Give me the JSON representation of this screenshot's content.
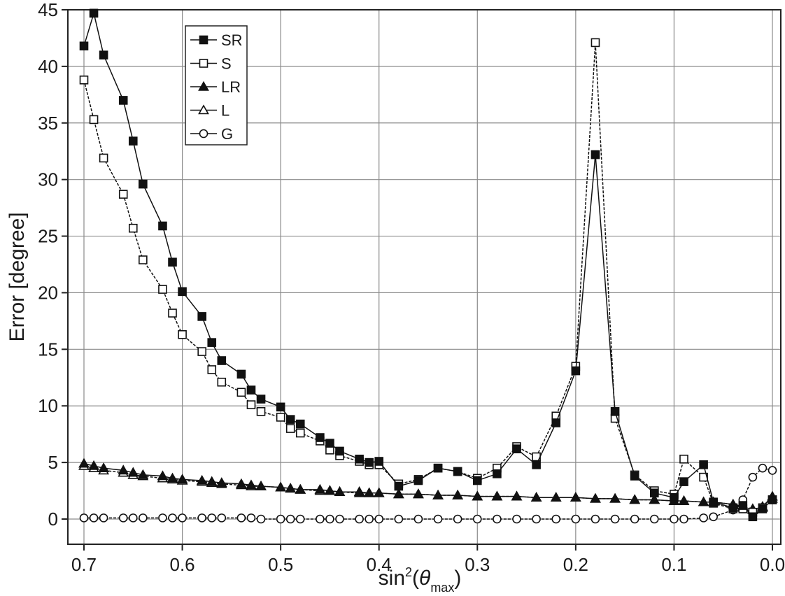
{
  "chart_data": {
    "type": "line",
    "ylabel": "Error [degree]",
    "xlabel": "sin²(θmax)",
    "xlabel_parts": {
      "main": "sin",
      "sup": "2",
      "open": "(",
      "theta": "θ",
      "sub": "max",
      "close": ")"
    },
    "xlim": [
      0.7,
      0.0
    ],
    "ylim": [
      0,
      45
    ],
    "x_reversed": true,
    "grid": true,
    "legend_position": "top-left",
    "xticks": [
      0.7,
      0.6,
      0.5,
      0.4,
      0.3,
      0.2,
      0.1,
      0.0
    ],
    "xtick_labels": [
      "0.7",
      "0.6",
      "0.5",
      "0.4",
      "0.3",
      "0.2",
      "0.1",
      "0.0"
    ],
    "yticks": [
      0,
      5,
      10,
      15,
      20,
      25,
      30,
      35,
      40,
      45
    ],
    "ytick_labels": [
      "0",
      "5",
      "10",
      "15",
      "20",
      "25",
      "30",
      "35",
      "40",
      "45"
    ],
    "series": [
      {
        "name": "SR",
        "marker": "square-filled",
        "x": [
          0.7,
          0.69,
          0.68,
          0.66,
          0.65,
          0.64,
          0.62,
          0.61,
          0.6,
          0.58,
          0.57,
          0.56,
          0.54,
          0.53,
          0.52,
          0.5,
          0.49,
          0.48,
          0.46,
          0.45,
          0.44,
          0.42,
          0.41,
          0.4,
          0.38,
          0.36,
          0.34,
          0.32,
          0.3,
          0.28,
          0.26,
          0.24,
          0.22,
          0.2,
          0.18,
          0.16,
          0.14,
          0.12,
          0.1,
          0.09,
          0.07,
          0.06,
          0.04,
          0.03,
          0.02,
          0.01,
          0.0
        ],
        "values": [
          41.8,
          44.7,
          41.0,
          37.0,
          33.4,
          29.6,
          25.9,
          22.7,
          20.1,
          17.9,
          15.6,
          14.0,
          12.8,
          11.4,
          10.6,
          9.9,
          8.8,
          8.4,
          7.2,
          6.7,
          6.0,
          5.3,
          5.0,
          5.1,
          2.9,
          3.4,
          4.5,
          4.2,
          3.4,
          4.0,
          6.2,
          4.8,
          8.5,
          13.1,
          32.2,
          9.5,
          3.8,
          2.3,
          1.9,
          3.3,
          4.8,
          1.5,
          1.0,
          1.2,
          0.2,
          0.9,
          1.7
        ]
      },
      {
        "name": "S",
        "marker": "square-open",
        "x": [
          0.7,
          0.69,
          0.68,
          0.66,
          0.65,
          0.64,
          0.62,
          0.61,
          0.6,
          0.58,
          0.57,
          0.56,
          0.54,
          0.53,
          0.52,
          0.5,
          0.49,
          0.48,
          0.46,
          0.45,
          0.44,
          0.42,
          0.41,
          0.4,
          0.38,
          0.36,
          0.34,
          0.32,
          0.3,
          0.28,
          0.26,
          0.24,
          0.22,
          0.2,
          0.18,
          0.16,
          0.14,
          0.12,
          0.1,
          0.09,
          0.07,
          0.06,
          0.04,
          0.03,
          0.02,
          0.01,
          0.0
        ],
        "values": [
          38.8,
          35.3,
          31.9,
          28.7,
          25.7,
          22.9,
          20.3,
          18.2,
          16.3,
          14.8,
          13.2,
          12.1,
          11.2,
          10.1,
          9.5,
          9.0,
          8.0,
          7.6,
          6.9,
          6.1,
          5.6,
          5.1,
          4.8,
          4.8,
          3.1,
          3.5,
          4.5,
          4.2,
          3.6,
          4.5,
          6.4,
          5.5,
          9.1,
          13.5,
          42.1,
          8.9,
          3.9,
          2.5,
          2.2,
          5.3,
          3.7,
          1.4,
          0.9,
          0.9,
          0.6,
          1.0,
          1.7
        ]
      },
      {
        "name": "LR",
        "marker": "triangle-filled",
        "x": [
          0.7,
          0.69,
          0.68,
          0.66,
          0.65,
          0.64,
          0.62,
          0.61,
          0.6,
          0.58,
          0.57,
          0.56,
          0.54,
          0.53,
          0.52,
          0.5,
          0.49,
          0.48,
          0.46,
          0.45,
          0.44,
          0.42,
          0.41,
          0.4,
          0.38,
          0.36,
          0.34,
          0.32,
          0.3,
          0.28,
          0.26,
          0.24,
          0.22,
          0.2,
          0.18,
          0.16,
          0.14,
          0.12,
          0.1,
          0.09,
          0.07,
          0.06,
          0.04,
          0.03,
          0.02,
          0.01,
          0.0
        ],
        "values": [
          4.9,
          4.7,
          4.5,
          4.3,
          4.1,
          3.9,
          3.8,
          3.6,
          3.5,
          3.4,
          3.3,
          3.2,
          3.1,
          3.0,
          2.9,
          2.8,
          2.7,
          2.6,
          2.6,
          2.5,
          2.4,
          2.4,
          2.3,
          2.3,
          2.2,
          2.2,
          2.1,
          2.1,
          2.0,
          2.0,
          2.0,
          1.9,
          1.9,
          1.9,
          1.8,
          1.8,
          1.7,
          1.7,
          1.6,
          1.6,
          1.5,
          1.5,
          1.3,
          1.0,
          0.8,
          1.1,
          2.0
        ]
      },
      {
        "name": "L",
        "marker": "triangle-open",
        "x": [
          0.7,
          0.69,
          0.68,
          0.66,
          0.65,
          0.64,
          0.62,
          0.61,
          0.6,
          0.58,
          0.57,
          0.56,
          0.54,
          0.53,
          0.52,
          0.5,
          0.49,
          0.48,
          0.46,
          0.45,
          0.44,
          0.42,
          0.41,
          0.4,
          0.38,
          0.36,
          0.34,
          0.32,
          0.3,
          0.28,
          0.26,
          0.24,
          0.22,
          0.2,
          0.18,
          0.16,
          0.14,
          0.12,
          0.1,
          0.09,
          0.07,
          0.06,
          0.04,
          0.03,
          0.02,
          0.01,
          0.0
        ],
        "values": [
          4.7,
          4.5,
          4.3,
          4.1,
          3.9,
          3.8,
          3.6,
          3.5,
          3.4,
          3.3,
          3.2,
          3.1,
          3.0,
          2.9,
          2.9,
          2.8,
          2.7,
          2.6,
          2.5,
          2.5,
          2.4,
          2.3,
          2.3,
          2.3,
          2.2,
          2.2,
          2.1,
          2.1,
          2.0,
          2.0,
          2.0,
          1.9,
          1.9,
          1.9,
          1.8,
          1.8,
          1.7,
          1.7,
          1.6,
          1.6,
          1.5,
          1.5,
          1.3,
          1.1,
          0.9,
          1.0,
          1.8
        ]
      },
      {
        "name": "G",
        "marker": "circle-open",
        "x": [
          0.7,
          0.69,
          0.68,
          0.66,
          0.65,
          0.64,
          0.62,
          0.61,
          0.6,
          0.58,
          0.57,
          0.56,
          0.54,
          0.53,
          0.52,
          0.5,
          0.49,
          0.48,
          0.46,
          0.45,
          0.44,
          0.42,
          0.41,
          0.4,
          0.38,
          0.36,
          0.34,
          0.32,
          0.3,
          0.28,
          0.26,
          0.24,
          0.22,
          0.2,
          0.18,
          0.16,
          0.14,
          0.12,
          0.1,
          0.09,
          0.07,
          0.06,
          0.04,
          0.03,
          0.02,
          0.01,
          0.0
        ],
        "values": [
          0.1,
          0.1,
          0.1,
          0.1,
          0.1,
          0.1,
          0.1,
          0.1,
          0.1,
          0.1,
          0.1,
          0.1,
          0.1,
          0.1,
          0.0,
          0.0,
          0.0,
          0.0,
          0.0,
          0.0,
          0.0,
          0.0,
          0.0,
          0.0,
          0.0,
          0.0,
          0.0,
          0.0,
          0.0,
          0.0,
          0.0,
          0.0,
          0.0,
          0.0,
          0.0,
          0.0,
          0.0,
          0.0,
          0.0,
          0.0,
          0.1,
          0.2,
          0.8,
          1.7,
          3.7,
          4.5,
          4.3
        ]
      }
    ]
  }
}
